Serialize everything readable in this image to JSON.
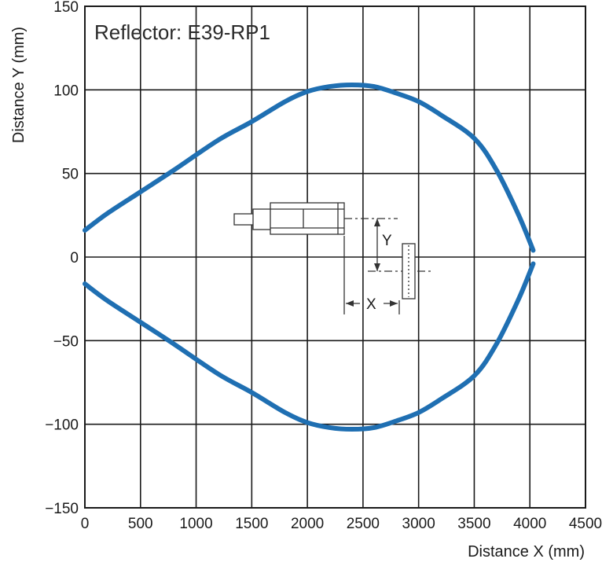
{
  "chart_data": {
    "type": "line",
    "title": "",
    "annotation": "Reflector: E39-RP1",
    "xlabel": "Distance X (mm)",
    "ylabel": "Distance Y (mm)",
    "xlim": [
      0,
      4500
    ],
    "ylim": [
      -150,
      150
    ],
    "xticks": [
      0,
      500,
      1000,
      1500,
      2000,
      2500,
      3000,
      3500,
      4000,
      4500
    ],
    "yticks": [
      150,
      100,
      50,
      0,
      -50,
      -100,
      -150
    ],
    "ytick_labels": [
      "150",
      "100",
      "50",
      "0",
      "−50",
      "−100",
      "−150"
    ],
    "grid": true,
    "legend": "none",
    "series_color": "#1f6fb2",
    "series": [
      {
        "x": [
          0,
          200,
          500,
          800,
          1200,
          1500,
          1800,
          2000,
          2200,
          2400,
          2600,
          2800,
          3000,
          3200,
          3500,
          3700,
          3900,
          4030
        ],
        "y": [
          16,
          26,
          39,
          52,
          70,
          81,
          93,
          99,
          102,
          103,
          102,
          98,
          93,
          85,
          71,
          52,
          25,
          4
        ]
      },
      {
        "x": [
          0,
          200,
          500,
          800,
          1200,
          1500,
          1800,
          2000,
          2200,
          2400,
          2600,
          2800,
          3000,
          3200,
          3500,
          3700,
          3900,
          4030
        ],
        "y": [
          -16,
          -26,
          -39,
          -52,
          -70,
          -81,
          -93,
          -99,
          -102,
          -103,
          -102,
          -98,
          -93,
          -85,
          -71,
          -52,
          -25,
          -4
        ]
      }
    ],
    "diagram_labels": {
      "x": "X",
      "y": "Y"
    }
  }
}
